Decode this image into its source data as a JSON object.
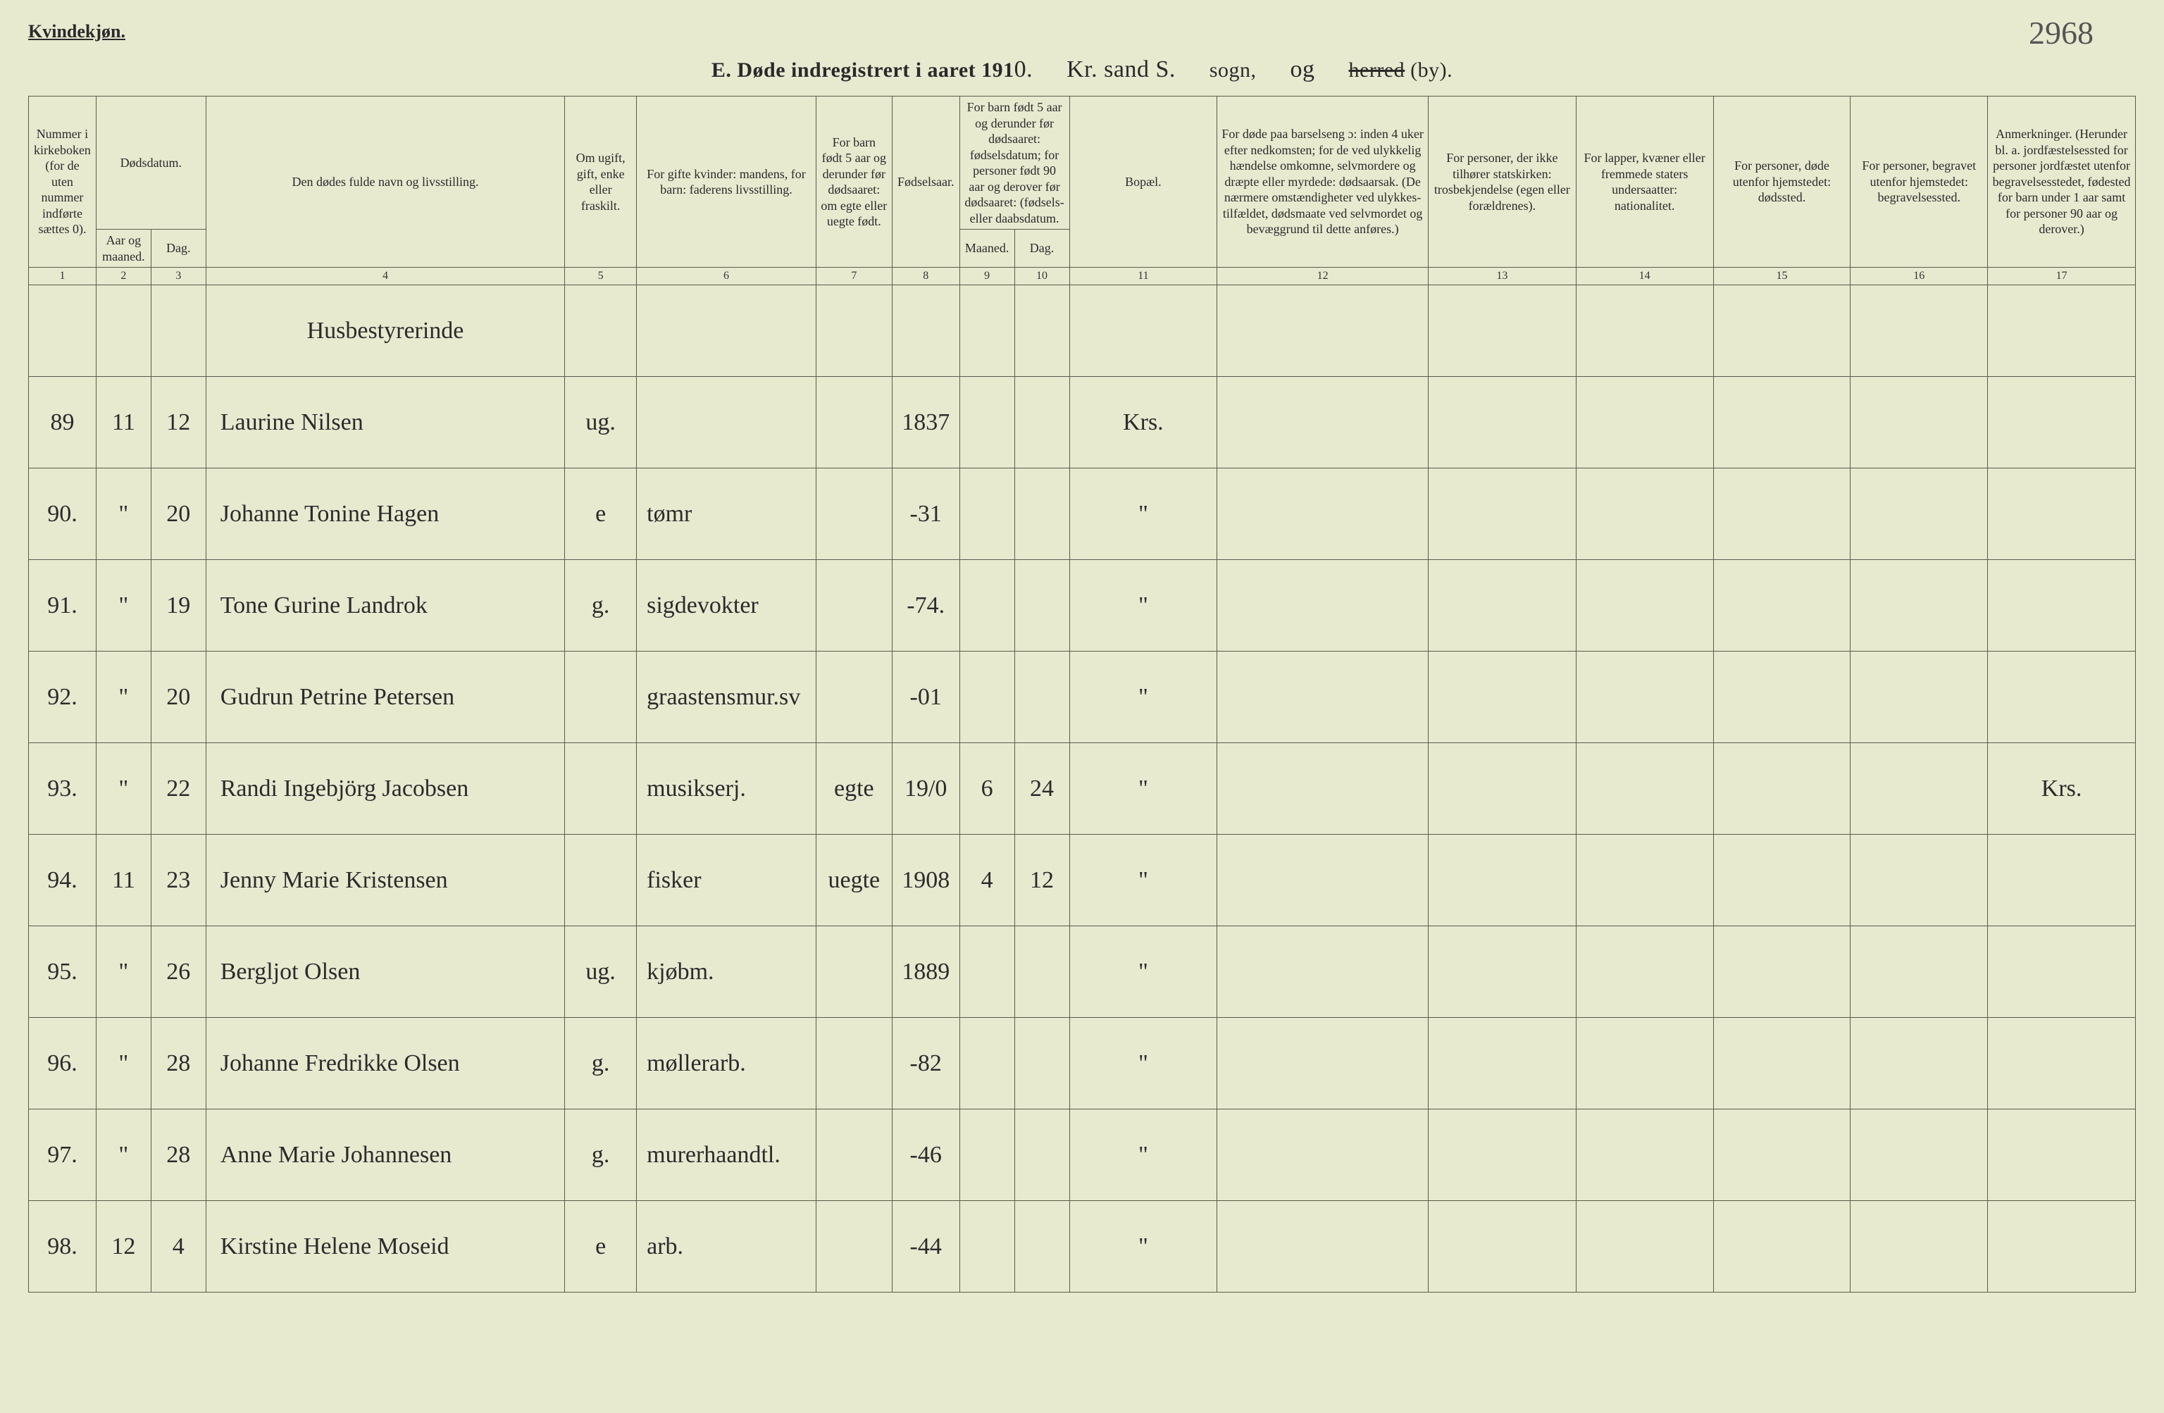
{
  "page": {
    "top_label": "Kvindekjøn.",
    "page_number_hand": "2968",
    "title_prefix": "E.  Døde indregistrert i aaret 191",
    "title_year_digit": "0.",
    "title_sogn_hand": "Kr. sand S.",
    "title_sogn_label": "sogn,",
    "title_og_hand": "og",
    "title_herred_struck": "herred",
    "title_by": "(by)."
  },
  "columns": {
    "c1": "Nummer i kirke­boken (for de uten nummer indførte sættes 0).",
    "c2_group": "Dødsdatum.",
    "c2": "Aar og maaned.",
    "c3": "Dag.",
    "c4": "Den dødes fulde navn og livsstilling.",
    "c5": "Om ugift, gift, enke eller fraskilt.",
    "c6": "For gifte kvinder: mandens, for barn: faderens livsstilling.",
    "c7": "For barn født 5 aar og derunder før døds­aaret: om egte eller uegte født.",
    "c8": "Fødsels­aar.",
    "c9_10_group": "For barn født 5 aar og der­under før dødsaaret: fødselsdatum; for personer født 90 aar og derover før dødsaaret: (fødsels- eller daabsdatum.",
    "c9": "Maaned.",
    "c10": "Dag.",
    "c11": "Bopæl.",
    "c12": "For døde paa barselseng ɔ: inden 4 uker efter nedkomsten; for de ved ulykkelig hændelse omkomne, selvmordere og dræpte eller myrdede: dødsaarsak. (De nærmere omstæn­digheter ved ulykkes­tilfældet, dødsmaate ved selvmordet og bevæggrund til dette anføres.)",
    "c13": "For personer, der ikke tilhører statskirken: trosbekjendelse (egen eller forældrenes).",
    "c14": "For lapper, kvæner eller fremmede staters undersaatter: nationalitet.",
    "c15": "For personer, døde utenfor hjemstedet: dødssted.",
    "c16": "For personer, begravet utenfor hjemstedet: begravelsessted.",
    "c17": "Anmerkninger. (Herunder bl. a. jordfæstelsessted for personer jordfæstet utenfor begravelses­stedet, fødested for barn under 1 aar samt for personer 90 aar og derover.)"
  },
  "colnums": [
    "1",
    "2",
    "3",
    "4",
    "5",
    "6",
    "7",
    "8",
    "9",
    "10",
    "11",
    "12",
    "13",
    "14",
    "15",
    "16",
    "17"
  ],
  "header_note": "Husbestyrerinde",
  "rows": [
    {
      "num": "89",
      "mo": "11",
      "day": "12",
      "name": "Laurine Nilsen",
      "stat": "ug.",
      "occ": "",
      "egte": "",
      "yr": "1837",
      "bm": "",
      "bd": "",
      "bop": "Krs.",
      "c12": "",
      "c13": "",
      "c14": "",
      "c15": "",
      "c16": "",
      "c17": ""
    },
    {
      "num": "90.",
      "mo": "\"",
      "day": "20",
      "name": "Johanne Tonine Hagen",
      "stat": "e",
      "occ": "tømr",
      "egte": "",
      "yr": "-31",
      "bm": "",
      "bd": "",
      "bop": "\"",
      "c12": "",
      "c13": "",
      "c14": "",
      "c15": "",
      "c16": "",
      "c17": ""
    },
    {
      "num": "91.",
      "mo": "\"",
      "day": "19",
      "name": "Tone Gurine Landrok",
      "stat": "g.",
      "occ": "sigdevokter",
      "egte": "",
      "yr": "-74.",
      "bm": "",
      "bd": "",
      "bop": "\"",
      "c12": "",
      "c13": "",
      "c14": "",
      "c15": "",
      "c16": "",
      "c17": ""
    },
    {
      "num": "92.",
      "mo": "\"",
      "day": "20",
      "name": "Gudrun Petrine Petersen",
      "stat": "",
      "occ": "graastensmur.sv",
      "egte": "",
      "yr": "-01",
      "bm": "",
      "bd": "",
      "bop": "\"",
      "c12": "",
      "c13": "",
      "c14": "",
      "c15": "",
      "c16": "",
      "c17": ""
    },
    {
      "num": "93.",
      "mo": "\"",
      "day": "22",
      "name": "Randi Ingebjörg Jacobsen",
      "stat": "",
      "occ": "musikserj.",
      "egte": "egte",
      "yr": "19/0",
      "bm": "6",
      "bd": "24",
      "bop": "\"",
      "c12": "",
      "c13": "",
      "c14": "",
      "c15": "",
      "c16": "",
      "c17": "Krs."
    },
    {
      "num": "94.",
      "mo": "11",
      "day": "23",
      "name": "Jenny Marie Kristensen",
      "stat": "",
      "occ": "fisker",
      "egte": "uegte",
      "yr": "1908",
      "bm": "4",
      "bd": "12",
      "bop": "\"",
      "c12": "",
      "c13": "",
      "c14": "",
      "c15": "",
      "c16": "",
      "c17": ""
    },
    {
      "num": "95.",
      "mo": "\"",
      "day": "26",
      "name": "Bergljot Olsen",
      "stat": "ug.",
      "occ": "kjøbm.",
      "egte": "",
      "yr": "1889",
      "bm": "",
      "bd": "",
      "bop": "\"",
      "c12": "",
      "c13": "",
      "c14": "",
      "c15": "",
      "c16": "",
      "c17": ""
    },
    {
      "num": "96.",
      "mo": "\"",
      "day": "28",
      "name": "Johanne Fredrikke Olsen",
      "stat": "g.",
      "occ": "møllerarb.",
      "egte": "",
      "yr": "-82",
      "bm": "",
      "bd": "",
      "bop": "\"",
      "c12": "",
      "c13": "",
      "c14": "",
      "c15": "",
      "c16": "",
      "c17": ""
    },
    {
      "num": "97.",
      "mo": "\"",
      "day": "28",
      "name": "Anne Marie Johannesen",
      "stat": "g.",
      "occ": "murerhaandtl.",
      "egte": "",
      "yr": "-46",
      "bm": "",
      "bd": "",
      "bop": "\"",
      "c12": "",
      "c13": "",
      "c14": "",
      "c15": "",
      "c16": "",
      "c17": ""
    },
    {
      "num": "98.",
      "mo": "12",
      "day": "4",
      "name": "Kirstine Helene Moseid",
      "stat": "e",
      "occ": "arb.",
      "egte": "",
      "yr": "-44",
      "bm": "",
      "bd": "",
      "bop": "\"",
      "c12": "",
      "c13": "",
      "c14": "",
      "c15": "",
      "c16": "",
      "c17": ""
    }
  ]
}
